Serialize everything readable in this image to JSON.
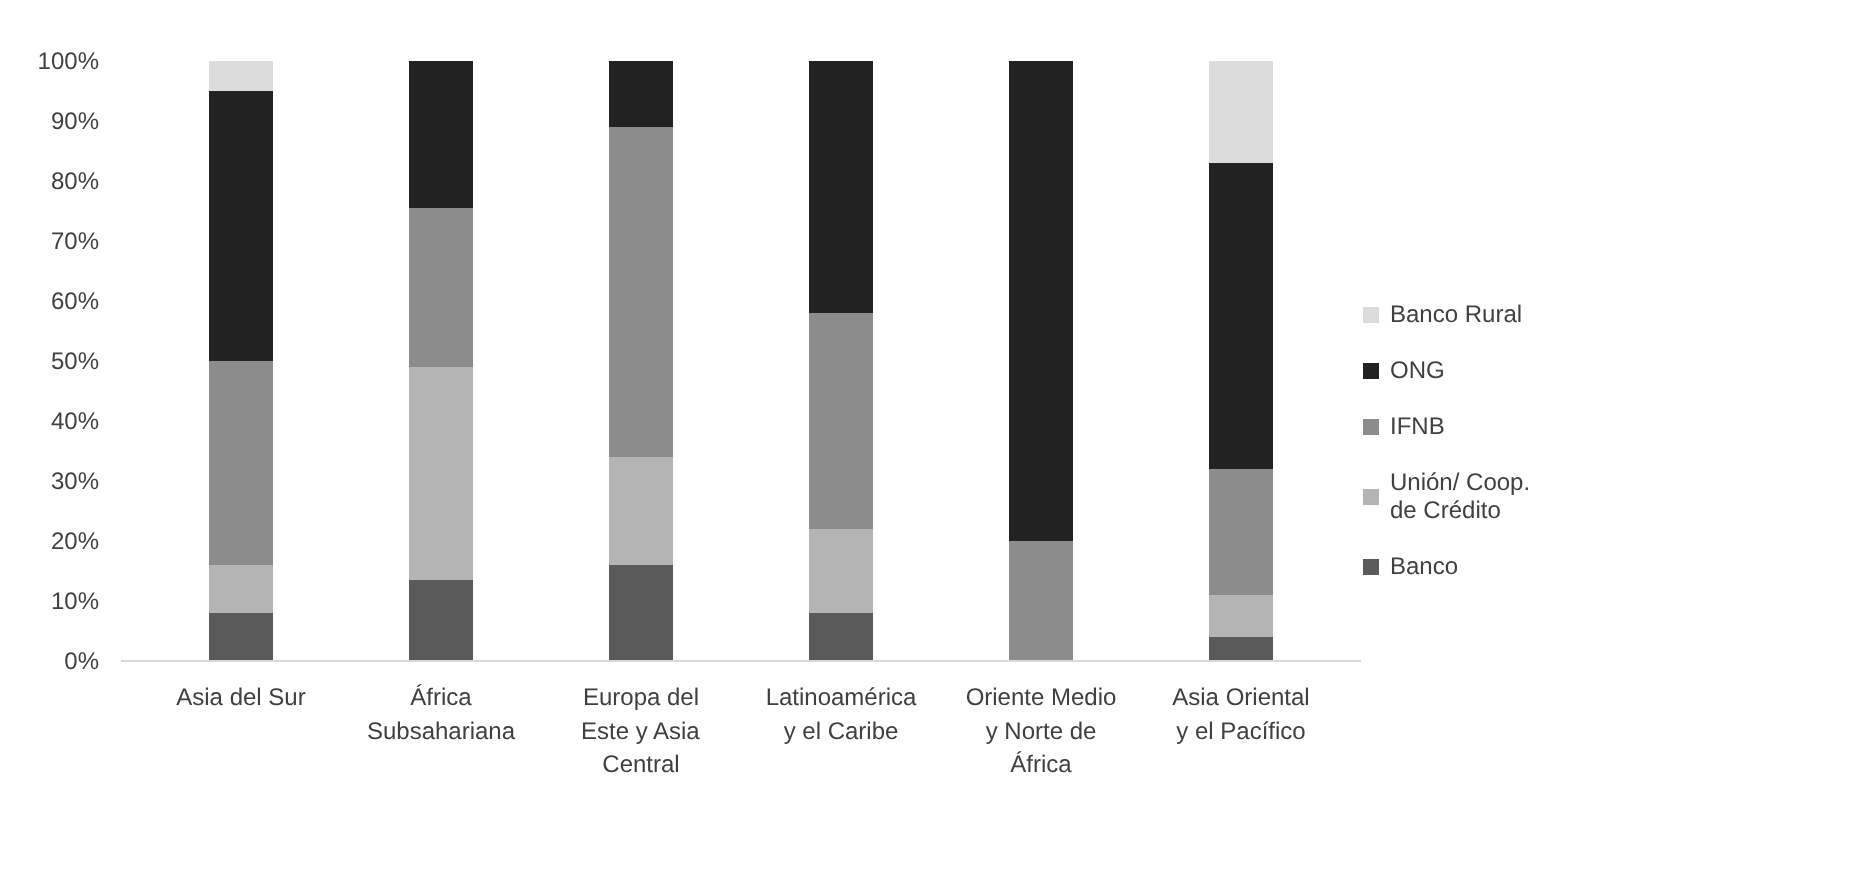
{
  "chart_data": {
    "type": "bar",
    "stacked": true,
    "legend": "right",
    "grid": false,
    "categories": [
      "Asia del Sur",
      "África Subsahariana",
      "Europa del Este y Asia Central",
      "Latinoamérica y el Caribe",
      "Oriente Medio y Norte de África",
      "Asia Oriental y el Pacífico"
    ],
    "ylim": [
      0,
      100
    ],
    "yticks": [
      {
        "value": 0,
        "label": "0%"
      },
      {
        "value": 10,
        "label": "10%"
      },
      {
        "value": 20,
        "label": "20%"
      },
      {
        "value": 30,
        "label": "30%"
      },
      {
        "value": 40,
        "label": "40%"
      },
      {
        "value": 50,
        "label": "50%"
      },
      {
        "value": 60,
        "label": "60%"
      },
      {
        "value": 70,
        "label": "70%"
      },
      {
        "value": 80,
        "label": "80%"
      },
      {
        "value": 90,
        "label": "90%"
      },
      {
        "value": 100,
        "label": "100%"
      }
    ],
    "series": [
      {
        "name": "Banco",
        "color": "#5a5a5a",
        "values": [
          8,
          13.5,
          16,
          8,
          0,
          4
        ]
      },
      {
        "name": "Unión/ Coop. de Crédito",
        "color": "#b4b4b4",
        "values": [
          8,
          35.5,
          18,
          14,
          0,
          7
        ]
      },
      {
        "name": "IFNB",
        "color": "#8c8c8c",
        "values": [
          34,
          26.5,
          55,
          36,
          20,
          21
        ]
      },
      {
        "name": "ONG",
        "color": "#222222",
        "values": [
          45,
          24.5,
          11,
          42,
          80,
          51
        ]
      },
      {
        "name": "Banco Rural",
        "color": "#dcdcdc",
        "values": [
          5,
          0,
          0,
          0,
          0,
          17
        ]
      }
    ]
  }
}
